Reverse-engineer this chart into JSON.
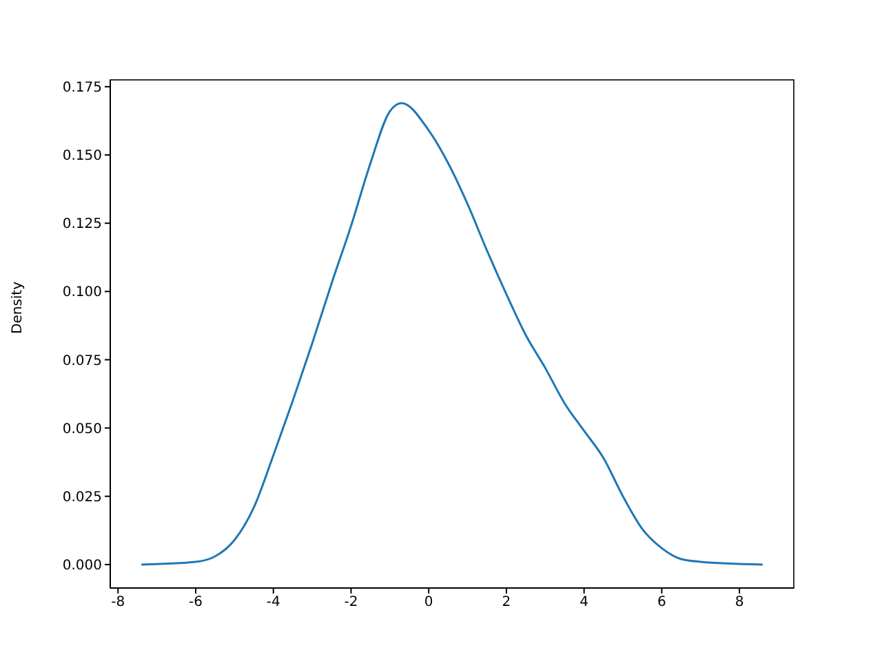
{
  "chart_data": {
    "type": "line",
    "ylabel": "Density",
    "x": [
      -7.4,
      -6,
      -5.5,
      -5,
      -4.5,
      -4,
      -3.5,
      -3,
      -2.5,
      -2,
      -1.5,
      -1,
      -0.7,
      0,
      0.5,
      1,
      1.5,
      2,
      2.5,
      3,
      3.5,
      4,
      4.5,
      5,
      5.5,
      6,
      6.5,
      7,
      8.6
    ],
    "series": [
      {
        "color": "#1f77b4",
        "values": [
          0.0,
          0.001,
          0.003,
          0.009,
          0.021,
          0.04,
          0.06,
          0.081,
          0.103,
          0.124,
          0.147,
          0.166,
          0.169,
          0.159,
          0.147,
          0.132,
          0.115,
          0.099,
          0.084,
          0.072,
          0.059,
          0.049,
          0.039,
          0.025,
          0.013,
          0.006,
          0.002,
          0.001,
          0.0
        ]
      }
    ],
    "xlim": [
      -8.2,
      9.4
    ],
    "xticks": [
      -8,
      -6,
      -4,
      -2,
      0,
      2,
      4,
      6,
      8
    ],
    "ylim": [
      -0.0086,
      0.1775
    ],
    "yticks": [
      {
        "value": 0,
        "label": "0.000"
      },
      0.025,
      {
        "value": 0.05,
        "label": "0.050"
      },
      0.075,
      {
        "value": 0.1,
        "label": "0.100"
      },
      0.125,
      {
        "value": 0.15,
        "label": "0.150"
      },
      0.175
    ],
    "grid": false,
    "legend": false,
    "marker": "none",
    "line_style": "solid"
  }
}
